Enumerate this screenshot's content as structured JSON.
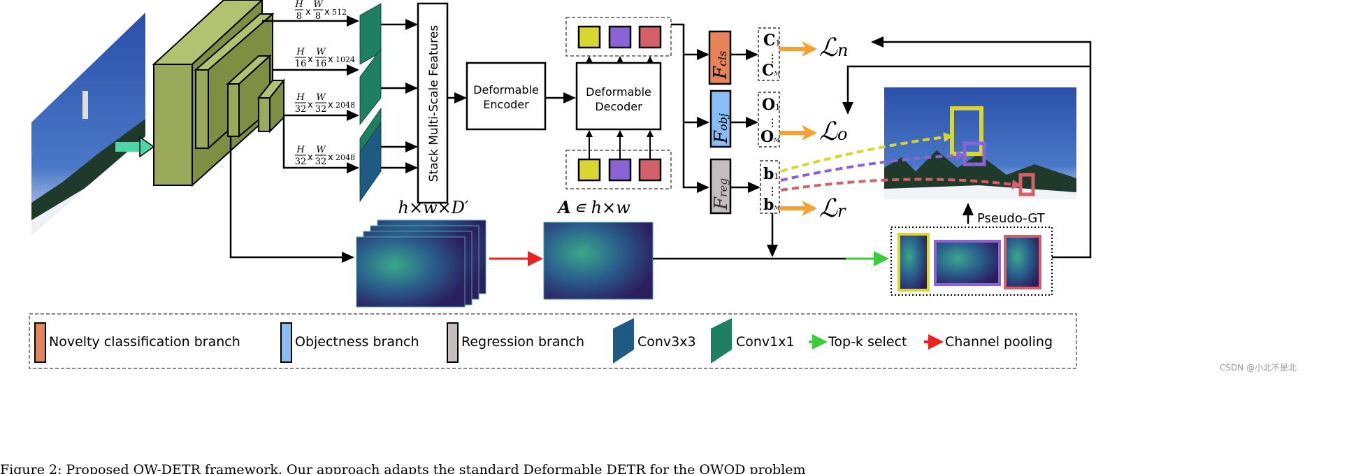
{
  "colors": {
    "backbone": "#9AAA5A",
    "conv1x1": "#1F7F62",
    "conv3x3": "#1F5A82",
    "novelty": "#E8845A",
    "objectness": "#8BBDF5",
    "regression": "#C4BEBE",
    "query_yellow": "#D9D62F",
    "query_purple": "#8B63D6",
    "query_red": "#D4606B",
    "loss_arrow": "#F5A030",
    "topk_arrow": "#3CCB3C",
    "pool_arrow": "#F02020"
  },
  "scales": [
    {
      "h": "H",
      "hd": "8",
      "w": "W",
      "wd": "8",
      "c": "512"
    },
    {
      "h": "H",
      "hd": "16",
      "w": "W",
      "wd": "16",
      "c": "1024"
    },
    {
      "h": "H",
      "hd": "32",
      "w": "W",
      "wd": "32",
      "c": "2048"
    },
    {
      "h": "H",
      "hd": "32",
      "w": "W",
      "wd": "32",
      "c": "2048"
    }
  ],
  "times": "x",
  "stack_label": "Stack Multi-Scale Features",
  "encoder": {
    "line1": "Deformable",
    "line2": "Encoder"
  },
  "decoder": {
    "line1": "Deformable",
    "line2": "Decoder"
  },
  "heads": {
    "cls": {
      "F": "F",
      "sub": "cls"
    },
    "obj": {
      "F": "F",
      "sub": "obj"
    },
    "reg": {
      "F": "F",
      "sub": "reg"
    }
  },
  "outputs": {
    "c_first": "C",
    "c_first_sub": "1",
    "c_last": "C",
    "c_last_sub": "M",
    "o_first": "O",
    "o_first_sub": "1",
    "o_last": "O",
    "o_last_sub": "M",
    "b_first": "b",
    "b_first_sub": "1",
    "b_last": "b",
    "b_last_sub": "M"
  },
  "losses": {
    "n": {
      "L": "ℒ",
      "sub": "n"
    },
    "o": {
      "L": "ℒ",
      "sub": "o"
    },
    "r": {
      "L": "ℒ",
      "sub": "r"
    }
  },
  "feature_label": "h×w×D′",
  "attention_label": {
    "A": "A",
    "rest": "∊ h×w"
  },
  "pseudo_gt": "Pseudo-GT",
  "legend": [
    {
      "label": "Novelty classification branch"
    },
    {
      "label": "Objectness branch"
    },
    {
      "label": "Regression branch"
    },
    {
      "label": "Conv3x3"
    },
    {
      "label": "Conv1x1"
    },
    {
      "label": "Top-k select"
    },
    {
      "label": "Channel pooling"
    }
  ],
  "watermark": "CSDN @小北不是北",
  "caption": "Figure 2: Proposed OW-DETR framework. Our approach adapts the standard Deformable DETR for the OWOD problem"
}
